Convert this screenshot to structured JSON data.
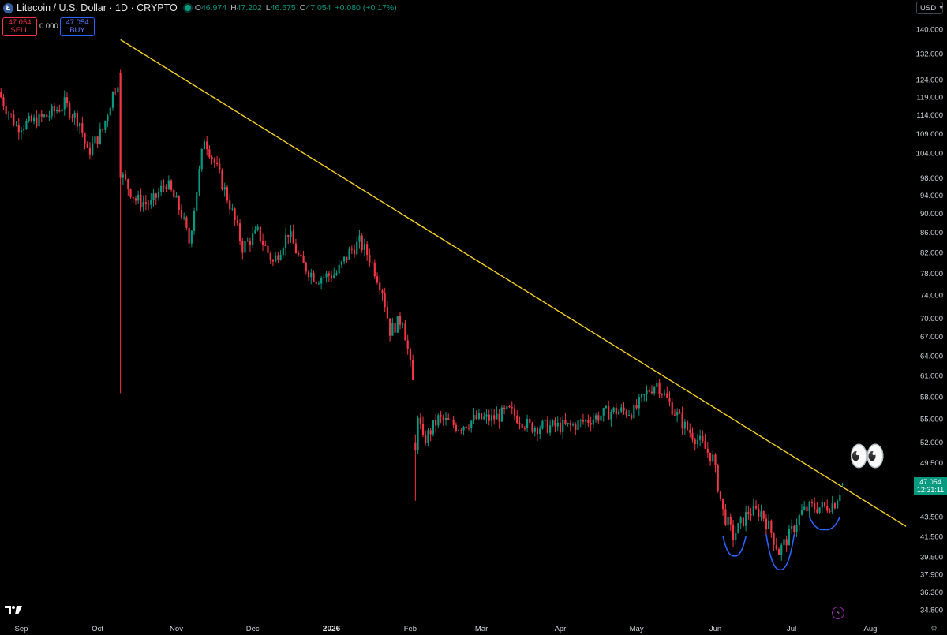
{
  "header": {
    "title": "Litecoin / U.S. Dollar · 1D · CRYPTO",
    "ohlc": {
      "o_label": "O",
      "o_value": "46.974",
      "h_label": "H",
      "h_value": "47.202",
      "l_label": "L",
      "l_value": "46.675",
      "c_label": "C",
      "c_value": "47.054"
    },
    "change": "+0.080 (+0.17%)",
    "logo_letter": "Ł"
  },
  "trade": {
    "sell_price": "47.054",
    "sell_label": "SELL",
    "spread": "0.000",
    "buy_price": "47.054",
    "buy_label": "BUY"
  },
  "currency_button": "USD",
  "last_price": {
    "price": "47.054",
    "countdown": "12:31:11"
  },
  "annotation_emoji": "👀",
  "colors": {
    "up": "#089981",
    "down": "#f23645",
    "trendline": "#f5d020",
    "annotation": "#2962ff",
    "background": "#000000"
  },
  "icons": [
    "tradingview-logo-icon",
    "flash-icon",
    "gear-icon",
    "live-dot-icon",
    "chevron-down-icon"
  ],
  "chart_data": {
    "type": "candlestick",
    "y_scale": "log",
    "ylim": [
      34.0,
      145.0
    ],
    "y_ticks": [
      "140.000",
      "132.000",
      "124.000",
      "119.000",
      "114.000",
      "109.000",
      "104.000",
      "98.000",
      "94.000",
      "90.000",
      "86.000",
      "82.000",
      "78.000",
      "74.000",
      "70.000",
      "67.000",
      "64.000",
      "61.000",
      "58.000",
      "55.000",
      "52.000",
      "49.500",
      "43.500",
      "41.500",
      "39.500",
      "37.900",
      "36.300",
      "34.800"
    ],
    "x_ticks": [
      "Sep",
      "Oct",
      "Nov",
      "Dec",
      "2026",
      "Feb",
      "Mar",
      "Apr",
      "May",
      "Jun",
      "Jul",
      "Aug"
    ],
    "bold_x_tick": "2026",
    "trendline": [
      {
        "date": "2025-10-10",
        "price": 136.5
      },
      {
        "date": "2026-08-15",
        "price": 42.5
      }
    ],
    "series_path": [
      [
        "2025-08-22",
        122
      ],
      [
        "2025-08-26",
        116
      ],
      [
        "2025-08-30",
        111
      ],
      [
        "2025-09-05",
        112
      ],
      [
        "2025-09-12",
        114
      ],
      [
        "2025-09-18",
        117
      ],
      [
        "2025-09-24",
        112
      ],
      [
        "2025-09-27",
        104
      ],
      [
        "2025-10-03",
        110
      ],
      [
        "2025-10-07",
        120
      ],
      [
        "2025-10-10",
        126
      ],
      [
        "2025-10-11",
        98
      ],
      [
        "2025-10-16",
        93
      ],
      [
        "2025-10-22",
        92
      ],
      [
        "2025-10-28",
        97
      ],
      [
        "2025-11-03",
        90
      ],
      [
        "2025-11-06",
        84
      ],
      [
        "2025-11-12",
        108
      ],
      [
        "2025-11-17",
        100
      ],
      [
        "2025-11-22",
        92
      ],
      [
        "2025-11-27",
        83
      ],
      [
        "2025-12-03",
        86
      ],
      [
        "2025-12-09",
        80
      ],
      [
        "2025-12-15",
        86
      ],
      [
        "2025-12-20",
        80
      ],
      [
        "2025-12-26",
        77
      ],
      [
        "2026-01-03",
        78
      ],
      [
        "2026-01-08",
        82
      ],
      [
        "2026-01-12",
        84
      ],
      [
        "2026-01-16",
        81
      ],
      [
        "2026-01-21",
        75
      ],
      [
        "2026-01-24",
        68
      ],
      [
        "2026-01-29",
        70
      ],
      [
        "2026-02-02",
        60
      ],
      [
        "2026-02-06",
        52
      ],
      [
        "2026-02-12",
        55
      ],
      [
        "2026-02-20",
        54
      ],
      [
        "2026-02-27",
        55
      ],
      [
        "2026-03-05",
        55
      ],
      [
        "2026-03-12",
        56
      ],
      [
        "2026-03-20",
        54
      ],
      [
        "2026-03-28",
        54
      ],
      [
        "2026-04-05",
        54
      ],
      [
        "2026-04-13",
        55
      ],
      [
        "2026-04-21",
        56
      ],
      [
        "2026-04-30",
        56
      ],
      [
        "2026-05-06",
        59
      ],
      [
        "2026-05-09",
        60
      ],
      [
        "2026-05-14",
        57
      ],
      [
        "2026-05-20",
        54
      ],
      [
        "2026-05-26",
        52
      ],
      [
        "2026-05-31",
        50
      ],
      [
        "2026-06-04",
        44
      ],
      [
        "2026-06-08",
        41.5
      ],
      [
        "2026-06-14",
        44
      ],
      [
        "2026-06-19",
        44
      ],
      [
        "2026-06-22",
        42.5
      ],
      [
        "2026-06-26",
        40
      ],
      [
        "2026-07-01",
        42
      ],
      [
        "2026-07-05",
        44
      ],
      [
        "2026-07-09",
        44.5
      ],
      [
        "2026-07-14",
        44.5
      ],
      [
        "2026-07-18",
        45
      ],
      [
        "2026-07-21",
        47.05
      ]
    ],
    "key_candles": [
      {
        "date": "2025-10-10",
        "open": 126,
        "high": 127,
        "low": 58.5,
        "close": 98
      },
      {
        "date": "2026-02-03",
        "open": 52,
        "high": 53,
        "low": 45.2,
        "close": 51
      },
      {
        "date": "2026-07-21",
        "open": 46.974,
        "high": 47.202,
        "low": 46.675,
        "close": 47.054
      }
    ],
    "last_price": 47.054
  }
}
